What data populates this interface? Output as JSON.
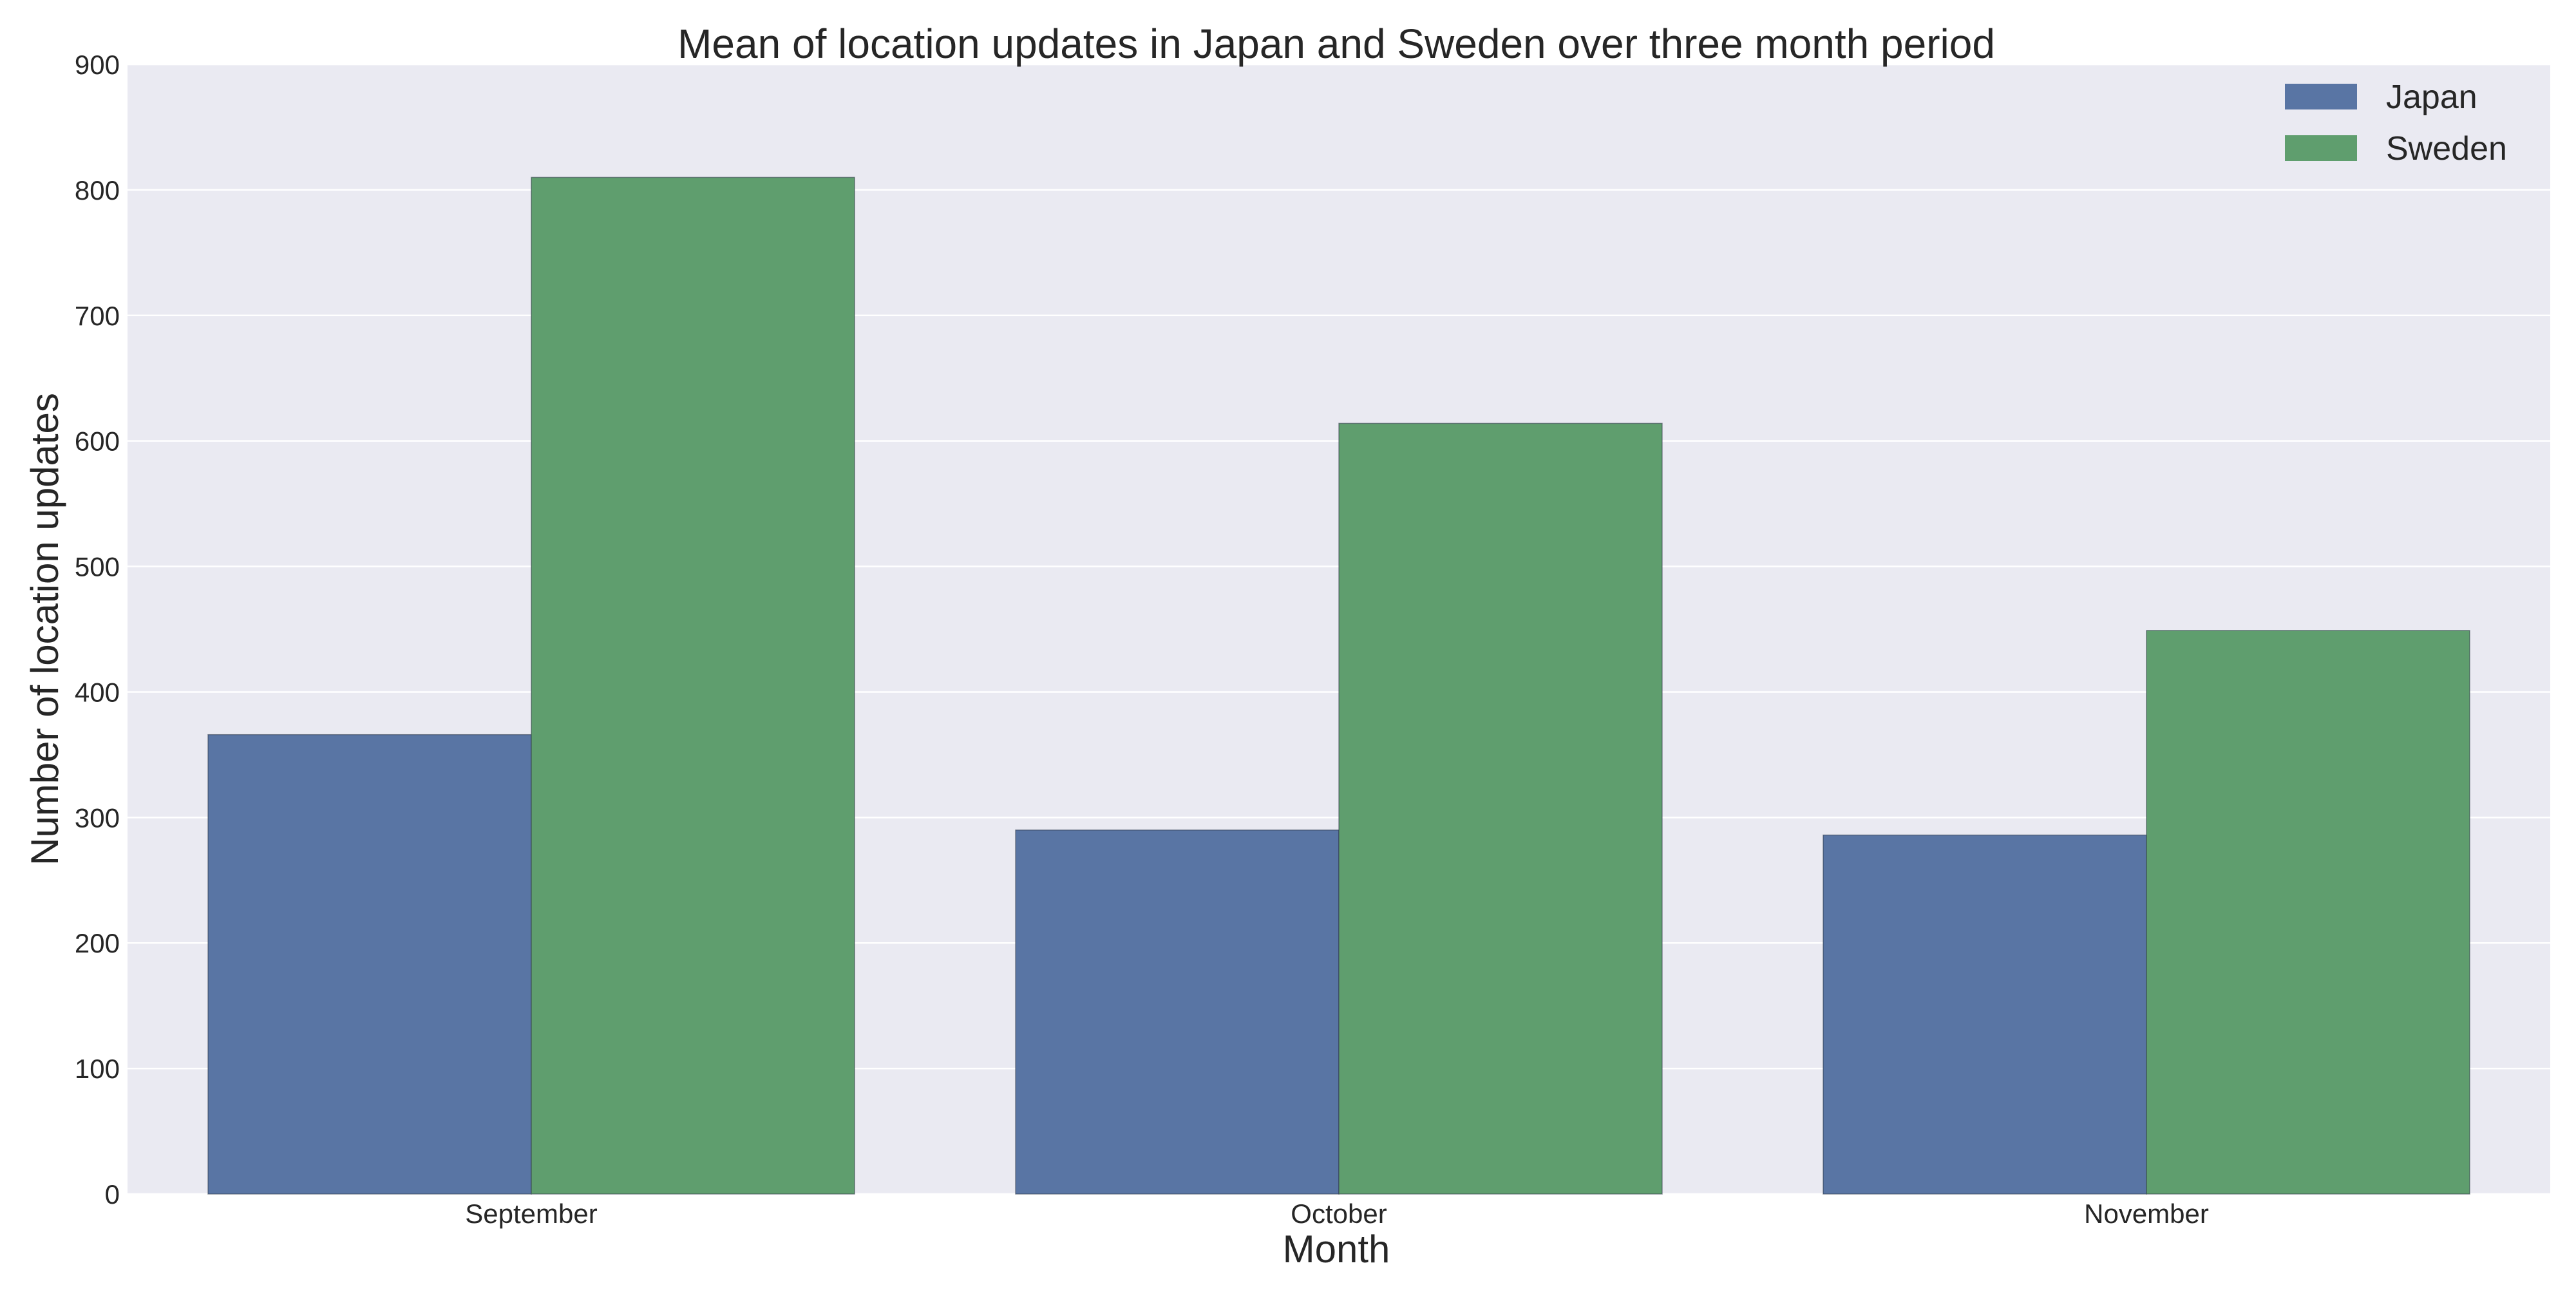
{
  "chart_data": {
    "type": "bar",
    "title": "Mean of location updates in Japan and Sweden over three month period",
    "xlabel": "Month",
    "ylabel": "Number of location updates",
    "categories": [
      "September",
      "October",
      "November"
    ],
    "series": [
      {
        "name": "Japan",
        "values": [
          366,
          290,
          286
        ],
        "color": "#5975a4"
      },
      {
        "name": "Sweden",
        "values": [
          810,
          614,
          449
        ],
        "color": "#5f9e6e"
      }
    ],
    "ylim": [
      0,
      900
    ],
    "yticks": [
      0,
      100,
      200,
      300,
      400,
      500,
      600,
      700,
      800,
      900
    ],
    "grid": true,
    "legend_position": "top-right"
  }
}
